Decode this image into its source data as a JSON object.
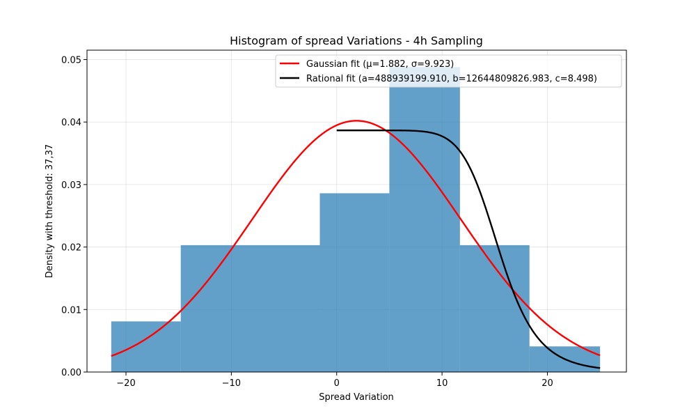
{
  "chart_data": {
    "type": "bar",
    "title": "Histogram of spread Variations - 4h Sampling",
    "xlabel": "Spread Variation",
    "ylabel": "Density with threshold: 37,37",
    "xlim": [
      -23.7,
      27.5
    ],
    "ylim": [
      0,
      0.0515
    ],
    "xticks": [
      -20,
      -10,
      0,
      10,
      20
    ],
    "xtick_labels": [
      "−20",
      "−10",
      "0",
      "10",
      "20"
    ],
    "yticks": [
      0,
      0.01,
      0.02,
      0.03,
      0.04,
      0.05
    ],
    "ytick_labels": [
      "0.00",
      "0.01",
      "0.02",
      "0.03",
      "0.04",
      "0.05"
    ],
    "grid": true,
    "legend_position": "top-right",
    "bar_color": "#1f77b4",
    "bins": [
      {
        "x0": -21.4,
        "x1": -14.8,
        "value": 0.0081
      },
      {
        "x0": -14.8,
        "x1": -1.6,
        "value": 0.0203
      },
      {
        "x0": -1.6,
        "x1": 5.0,
        "value": 0.0286
      },
      {
        "x0": 5.0,
        "x1": 11.7,
        "value": 0.0488
      },
      {
        "x0": 11.7,
        "x1": 18.3,
        "value": 0.0203
      },
      {
        "x0": 18.3,
        "x1": 25.0,
        "value": 0.0041
      }
    ],
    "series": [
      {
        "name": "Gaussian fit (μ=1.882, σ=9.923)",
        "type": "line",
        "color": "#ff0000",
        "model": "gaussian",
        "params": {
          "mu": 1.882,
          "sigma": 9.923
        },
        "x_range": [
          -21.4,
          25.0
        ]
      },
      {
        "name": "Rational fit (a=488939199.910, b=12644809826.983, c=8.498)",
        "type": "line",
        "color": "#000000",
        "model": "rational",
        "params": {
          "a": 488939199.91,
          "b": 12644809826.983,
          "c": 8.498
        },
        "x_range": [
          0.0,
          25.0
        ]
      }
    ]
  }
}
